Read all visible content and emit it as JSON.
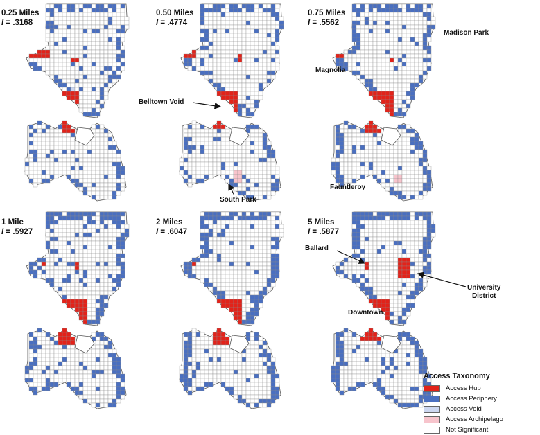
{
  "panels": [
    {
      "id": "p1",
      "distance": "0.25 Miles",
      "i_value": ".3168"
    },
    {
      "id": "p2",
      "distance": "0.50 Miles",
      "i_value": ".4774"
    },
    {
      "id": "p3",
      "distance": "0.75 Miles",
      "i_value": ".5562"
    },
    {
      "id": "p4",
      "distance": "1 Mile",
      "i_value": ".5927"
    },
    {
      "id": "p5",
      "distance": "2 Miles",
      "i_value": ".6047"
    },
    {
      "id": "p6",
      "distance": "5 Miles",
      "i_value": ".5877"
    }
  ],
  "i_label": "I",
  "i_separator": " = ",
  "callouts": {
    "belltown_void": "Belltown Void",
    "south_park": "South Park",
    "madison_park": "Madison Park",
    "magnolia": "Magnolia",
    "fauntleroy": "Fauntleroy",
    "ballard": "Ballard",
    "university_district_line1": "University",
    "university_district_line2": "District",
    "downtown": "Downtown"
  },
  "legend": {
    "title": "Access Taxonomy",
    "items": [
      {
        "label": "Access Hub",
        "color": "#e2231a"
      },
      {
        "label": "Access Periphery",
        "color": "#4a6fc0"
      },
      {
        "label": "Access Void",
        "color": "#cdd7f0"
      },
      {
        "label": "Access Archipelago",
        "color": "#f7c4cc"
      },
      {
        "label": "Not Significant",
        "color": "#ffffff"
      }
    ]
  },
  "colors": {
    "hub": "#e2231a",
    "periphery": "#4a6fc0",
    "void": "#cdd7f0",
    "archipelago": "#f7c4cc",
    "not_significant": "#ffffff",
    "tract_line": "#555555",
    "water": "#ffffff"
  }
}
